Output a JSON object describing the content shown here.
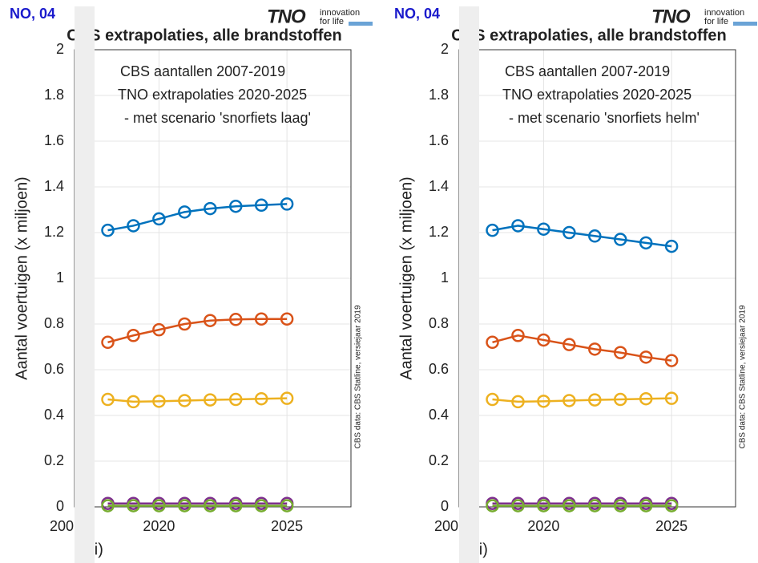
{
  "chart_data": [
    {
      "type": "line",
      "title_fragment": "NO, 04",
      "title": "CBS extrapolaties, alle brandstoffen",
      "logo": "TNO",
      "logo_tagline": [
        "innovation",
        "for life"
      ],
      "annotations": [
        "CBS aantallen 2007-2019",
        "TNO extrapolaties 2020-2025",
        " - met scenario 'snorfiets laag'"
      ],
      "source_note": "CBS data: CBS Statline, versiejaar 2019",
      "ylabel": "Aantal voertuigen (x miljoen)",
      "xlabel_fragment": "ari)",
      "xtick_fragment": "200",
      "x": [
        2018,
        2019,
        2020,
        2021,
        2022,
        2023,
        2024,
        2025
      ],
      "xlim": [
        2016.7,
        2027.5
      ],
      "xticks": [
        2020,
        2025
      ],
      "ylim": [
        0,
        2
      ],
      "yticks": [
        0,
        0.2,
        0.4,
        0.6,
        0.8,
        1,
        1.2,
        1.4,
        1.6,
        1.8,
        2
      ],
      "grid": true,
      "series": [
        {
          "color": "#0072BD",
          "values": [
            1.21,
            1.23,
            1.26,
            1.29,
            1.305,
            1.315,
            1.32,
            1.325
          ]
        },
        {
          "color": "#D95319",
          "values": [
            0.72,
            0.75,
            0.775,
            0.8,
            0.815,
            0.82,
            0.822,
            0.822
          ]
        },
        {
          "color": "#EDB120",
          "values": [
            0.47,
            0.46,
            0.462,
            0.465,
            0.468,
            0.47,
            0.473,
            0.475
          ]
        },
        {
          "color": "#7E2F8E",
          "values": [
            0.015,
            0.015,
            0.015,
            0.015,
            0.015,
            0.015,
            0.015,
            0.015
          ]
        },
        {
          "color": "#77AC30",
          "values": [
            0.005,
            0.005,
            0.005,
            0.005,
            0.005,
            0.005,
            0.005,
            0.005
          ]
        }
      ]
    },
    {
      "type": "line",
      "title_fragment": "NO, 04",
      "title": "CBS extrapolaties, alle brandstoffen",
      "logo": "TNO",
      "logo_tagline": [
        "innovation",
        "for life"
      ],
      "annotations": [
        "CBS aantallen 2007-2019",
        "TNO extrapolaties 2020-2025",
        " - met scenario 'snorfiets helm'"
      ],
      "source_note": "CBS data: CBS Statline, versiejaar 2019",
      "ylabel": "Aantal voertuigen (x miljoen)",
      "xlabel_fragment": "ari)",
      "xtick_fragment": "200",
      "x": [
        2018,
        2019,
        2020,
        2021,
        2022,
        2023,
        2024,
        2025
      ],
      "xlim": [
        2016.7,
        2027.5
      ],
      "xticks": [
        2020,
        2025
      ],
      "ylim": [
        0,
        2
      ],
      "yticks": [
        0,
        0.2,
        0.4,
        0.6,
        0.8,
        1,
        1.2,
        1.4,
        1.6,
        1.8,
        2
      ],
      "grid": true,
      "series": [
        {
          "color": "#0072BD",
          "values": [
            1.21,
            1.23,
            1.215,
            1.2,
            1.185,
            1.17,
            1.155,
            1.14
          ]
        },
        {
          "color": "#D95319",
          "values": [
            0.72,
            0.75,
            0.73,
            0.71,
            0.69,
            0.675,
            0.655,
            0.64
          ]
        },
        {
          "color": "#EDB120",
          "values": [
            0.47,
            0.46,
            0.462,
            0.465,
            0.468,
            0.47,
            0.473,
            0.475
          ]
        },
        {
          "color": "#7E2F8E",
          "values": [
            0.015,
            0.015,
            0.015,
            0.015,
            0.015,
            0.015,
            0.015,
            0.015
          ]
        },
        {
          "color": "#77AC30",
          "values": [
            0.005,
            0.005,
            0.005,
            0.005,
            0.005,
            0.005,
            0.005,
            0.005
          ]
        }
      ]
    }
  ]
}
